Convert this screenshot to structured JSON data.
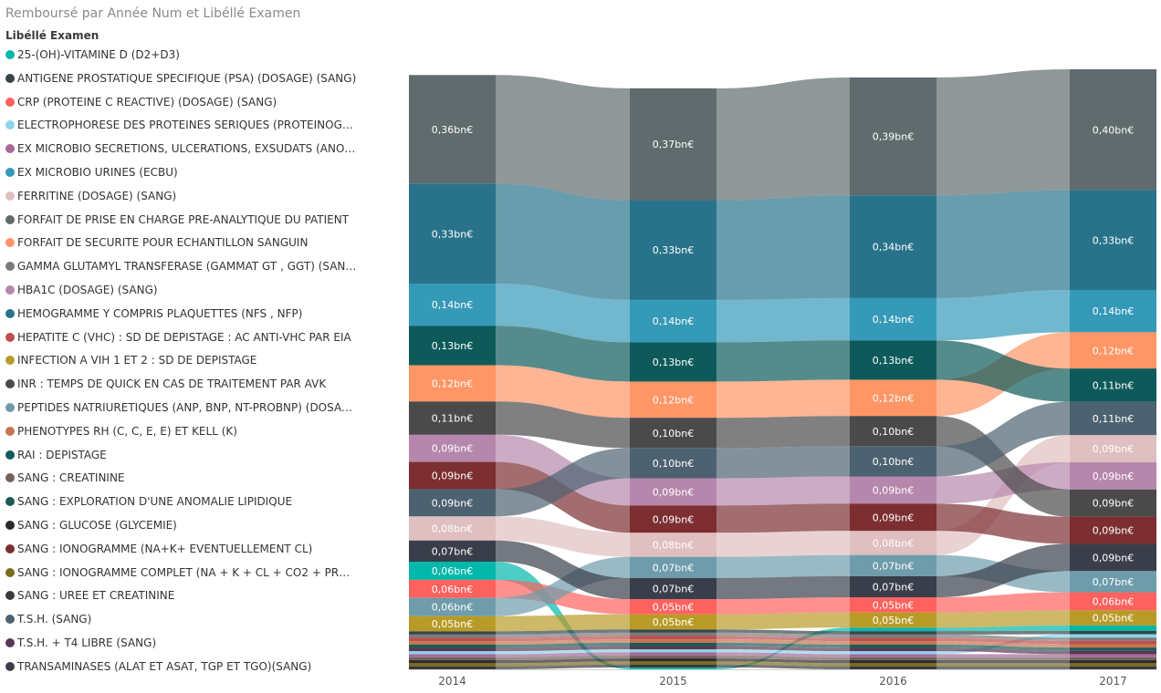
{
  "title": "Remboursé par Année Num et Libéllé Examen",
  "legend_heading": "Libéllé Examen",
  "chart_data": {
    "type": "ribbon",
    "title": "Remboursé par Année Num et Libéllé Examen",
    "legend_title": "Libéllé Examen",
    "years": [
      "2014",
      "2015",
      "2016",
      "2017"
    ],
    "legend_placement": "left",
    "series": [
      {
        "name": "25-(OH)-VITAMINE D (D2+D3)",
        "color": "#01B8AA",
        "values": [
          0.06,
          0.006,
          0.012,
          0.018
        ],
        "labels": [
          "0,06bn€",
          "",
          "",
          ""
        ]
      },
      {
        "name": "ANTIGENE PROSTATIQUE SPECIFIQUE (PSA) (DOSAGE) (SANG)",
        "color": "#374649",
        "values": [
          0.011,
          0.011,
          0.011,
          0.011
        ],
        "labels": [
          "",
          "",
          "",
          ""
        ]
      },
      {
        "name": "CRP (PROTEINE C REACTIVE) (DOSAGE) (SANG)",
        "color": "#FD625E",
        "values": [
          0.06,
          0.05,
          0.05,
          0.06
        ],
        "labels": [
          "0,06bn€",
          "0,05bn€",
          "0,05bn€",
          "0,06bn€"
        ]
      },
      {
        "name": "ELECTROPHORESE DES PROTEINES SERIQUES (PROTEINOGRAMME)",
        "color": "#8AD4EB",
        "values": [
          0.01,
          0.01,
          0.01,
          0.011
        ],
        "labels": [
          "",
          "",
          "",
          ""
        ]
      },
      {
        "name": "EX MICROBIO SECRETIONS, ULCERATIONS, EXSUDATS (ANO) GENI...",
        "color": "#A66999",
        "values": [
          0.01,
          0.01,
          0.01,
          0.01
        ],
        "labels": [
          "",
          "",
          "",
          ""
        ]
      },
      {
        "name": "EX MICROBIO URINES (ECBU)",
        "color": "#3599B8",
        "values": [
          0.14,
          0.14,
          0.14,
          0.14
        ],
        "labels": [
          "0,14bn€",
          "0,14bn€",
          "0,14bn€",
          "0,14bn€"
        ]
      },
      {
        "name": "FERRITINE (DOSAGE) (SANG)",
        "color": "#DFBFBF",
        "values": [
          0.08,
          0.08,
          0.08,
          0.09
        ],
        "labels": [
          "0,08bn€",
          "0,08bn€",
          "0,08bn€",
          "0,09bn€"
        ]
      },
      {
        "name": "FORFAIT DE PRISE EN CHARGE PRE-ANALYTIQUE DU PATIENT",
        "color": "#5F6B6D",
        "values": [
          0.36,
          0.37,
          0.39,
          0.4
        ],
        "labels": [
          "0,36bn€",
          "0,37bn€",
          "0,39bn€",
          "0,40bn€"
        ]
      },
      {
        "name": "FORFAIT DE SECURITE POUR ECHANTILLON SANGUIN",
        "color": "#FE9666",
        "values": [
          0.12,
          0.12,
          0.12,
          0.12
        ],
        "labels": [
          "0,12bn€",
          "0,12bn€",
          "0,12bn€",
          "0,12bn€"
        ]
      },
      {
        "name": "GAMMA GLUTAMYL TRANSFERASE (GAMMAT GT , GGT) (SANG)",
        "color": "#7B7B7B",
        "values": [
          0.011,
          0.011,
          0.011,
          0.011
        ],
        "labels": [
          "",
          "",
          "",
          ""
        ]
      },
      {
        "name": "HBA1C (DOSAGE) (SANG)",
        "color": "#B687AC",
        "values": [
          0.09,
          0.09,
          0.09,
          0.09
        ],
        "labels": [
          "0,09bn€",
          "0,09bn€",
          "0,09bn€",
          "0,09bn€"
        ]
      },
      {
        "name": "HEMOGRAMME Y COMPRIS PLAQUETTES (NFS , NFP)",
        "color": "#28738A",
        "values": [
          0.33,
          0.33,
          0.34,
          0.33
        ],
        "labels": [
          "0,33bn€",
          "0,33bn€",
          "0,34bn€",
          "0,33bn€"
        ]
      },
      {
        "name": "HEPATITE C (VHC) : SD DE DEPISTAGE : AC ANTI-VHC PAR EIA",
        "color": "#C04D4D",
        "values": [
          0.011,
          0.011,
          0.011,
          0.011
        ],
        "labels": [
          "",
          "",
          "",
          ""
        ]
      },
      {
        "name": "INFECTION A VIH 1 ET 2 : SD DE DEPISTAGE",
        "color": "#B89B27",
        "values": [
          0.05,
          0.05,
          0.05,
          0.05
        ],
        "labels": [
          "0,05bn€",
          "0,05bn€",
          "0,05bn€",
          "0,05bn€"
        ]
      },
      {
        "name": "INR : TEMPS DE QUICK EN CAS DE TRAITEMENT PAR AVK",
        "color": "#4A4A4A",
        "values": [
          0.11,
          0.1,
          0.1,
          0.09
        ],
        "labels": [
          "0,11bn€",
          "0,10bn€",
          "0,10bn€",
          "0,09bn€"
        ]
      },
      {
        "name": "PEPTIDES NATRIURETIQUES (ANP, BNP, NT-PROBNP) (DOSAGE) (S...",
        "color": "#6E9CAB",
        "values": [
          0.06,
          0.07,
          0.07,
          0.07
        ],
        "labels": [
          "0,06bn€",
          "0,07bn€",
          "0,07bn€",
          "0,07bn€"
        ]
      },
      {
        "name": "PHENOTYPES RH (C, C, E, E)  ET KELL (K)",
        "color": "#C8734E",
        "values": [
          0.011,
          0.011,
          0.011,
          0.011
        ],
        "labels": [
          "",
          "",
          "",
          ""
        ]
      },
      {
        "name": "RAI : DEPISTAGE",
        "color": "#0E5A5A",
        "values": [
          0.13,
          0.13,
          0.13,
          0.11
        ],
        "labels": [
          "0,13bn€",
          "0,13bn€",
          "0,13bn€",
          "0,11bn€"
        ]
      },
      {
        "name": "SANG : CREATININE",
        "color": "#73615E",
        "values": [
          0.01,
          0.01,
          0.01,
          0.01
        ],
        "labels": [
          "",
          "",
          "",
          ""
        ]
      },
      {
        "name": "SANG : EXPLORATION D'UNE ANOMALIE LIPIDIQUE",
        "color": "#1D5A55",
        "values": [
          0.011,
          0.011,
          0.011,
          0.011
        ],
        "labels": [
          "",
          "",
          "",
          ""
        ]
      },
      {
        "name": "SANG : GLUCOSE (GLYCEMIE)",
        "color": "#2A2A2A",
        "values": [
          0.01,
          0.01,
          0.01,
          0.01
        ],
        "labels": [
          "",
          "",
          "",
          ""
        ]
      },
      {
        "name": "SANG : IONOGRAMME (NA+K+ EVENTUELLEMENT CL)",
        "color": "#7C2E30",
        "values": [
          0.09,
          0.09,
          0.09,
          0.09
        ],
        "labels": [
          "0,09bn€",
          "0,09bn€",
          "0,09bn€",
          "0,09bn€"
        ]
      },
      {
        "name": "SANG : IONOGRAMME COMPLET (NA + K + CL + CO2 + PROTIDES)",
        "color": "#7C6A1E",
        "values": [
          0.01,
          0.01,
          0.01,
          0.01
        ],
        "labels": [
          "",
          "",
          "",
          ""
        ]
      },
      {
        "name": "SANG : UREE ET CREATININE",
        "color": "#3A3A3A",
        "values": [
          0.01,
          0.01,
          0.01,
          0.01
        ],
        "labels": [
          "",
          "",
          "",
          ""
        ]
      },
      {
        "name": "T.S.H. (SANG)",
        "color": "#4D6270",
        "values": [
          0.09,
          0.1,
          0.1,
          0.11
        ],
        "labels": [
          "0,09bn€",
          "0,10bn€",
          "0,10bn€",
          "0,11bn€"
        ]
      },
      {
        "name": "T.S.H. + T4 LIBRE (SANG)",
        "color": "#5A3752",
        "values": [
          0.011,
          0.011,
          0.011,
          0.011
        ],
        "labels": [
          "",
          "",
          "",
          ""
        ]
      },
      {
        "name": "TRANSAMINASES (ALAT ET ASAT, TGP ET TGO)(SANG)",
        "color": "#393E4A",
        "values": [
          0.07,
          0.07,
          0.07,
          0.09
        ],
        "labels": [
          "0,07bn€",
          "0,07bn€",
          "0,07bn€",
          "0,09bn€"
        ]
      }
    ]
  }
}
